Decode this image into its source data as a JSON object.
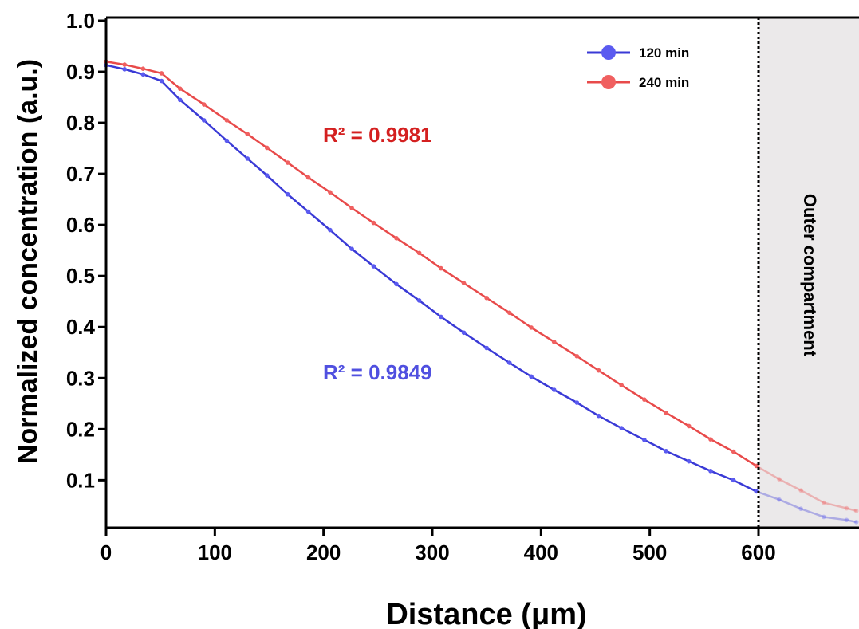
{
  "chart_data": {
    "type": "line",
    "xlabel": "Distance (μm)",
    "ylabel": "Normalized concentration (a.u.)",
    "xlim": [
      0,
      690
    ],
    "ylim": [
      0.01,
      1.0
    ],
    "xticks": [
      {
        "value": 0,
        "label": "0"
      },
      {
        "value": 100,
        "label": "100"
      },
      {
        "value": 200,
        "label": "200"
      },
      {
        "value": 300,
        "label": "300"
      },
      {
        "value": 400,
        "label": "400"
      },
      {
        "value": 500,
        "label": "500"
      },
      {
        "value": 600,
        "label": "600"
      }
    ],
    "yticks": [
      {
        "value": 0.1,
        "label": "0.1"
      },
      {
        "value": 0.2,
        "label": "0.2"
      },
      {
        "value": 0.3,
        "label": "0.3"
      },
      {
        "value": 0.4,
        "label": "0.4"
      },
      {
        "value": 0.5,
        "label": "0.5"
      },
      {
        "value": 0.6,
        "label": "0.6"
      },
      {
        "value": 0.7,
        "label": "0.7"
      },
      {
        "value": 0.8,
        "label": "0.8"
      },
      {
        "value": 0.9,
        "label": "0.9"
      },
      {
        "value": 1.0,
        "label": "1.0"
      }
    ],
    "region": {
      "x_start": 600,
      "x_end": 690,
      "label": "Outer compartment",
      "color": "#ebe9ea"
    },
    "boundary_x": 600,
    "legend_position": "top-right",
    "series": [
      {
        "name": "120 min",
        "color": "#3a3ad6",
        "marker_color": "#5a5af0",
        "x": [
          0,
          17,
          34,
          51,
          68,
          90,
          111,
          130,
          148,
          167,
          186,
          206,
          226,
          246,
          267,
          288,
          308,
          329,
          350,
          371,
          391,
          412,
          433,
          453,
          474,
          495,
          515,
          536,
          556,
          577,
          598,
          619,
          639,
          660,
          681,
          690
        ],
        "y": [
          0.913,
          0.905,
          0.895,
          0.882,
          0.845,
          0.805,
          0.765,
          0.73,
          0.697,
          0.66,
          0.626,
          0.59,
          0.553,
          0.519,
          0.484,
          0.452,
          0.42,
          0.389,
          0.359,
          0.33,
          0.303,
          0.277,
          0.252,
          0.226,
          0.202,
          0.179,
          0.157,
          0.137,
          0.118,
          0.1,
          0.078,
          0.062,
          0.044,
          0.028,
          0.022,
          0.018
        ]
      },
      {
        "name": "240 min",
        "color": "#e84a4a",
        "marker_color": "#f06060",
        "x": [
          0,
          17,
          34,
          51,
          68,
          90,
          111,
          130,
          148,
          167,
          186,
          206,
          226,
          246,
          267,
          288,
          308,
          329,
          350,
          371,
          391,
          412,
          433,
          453,
          474,
          495,
          515,
          536,
          556,
          577,
          598,
          619,
          639,
          660,
          681,
          690
        ],
        "y": [
          0.92,
          0.914,
          0.906,
          0.897,
          0.867,
          0.836,
          0.805,
          0.778,
          0.751,
          0.722,
          0.693,
          0.664,
          0.633,
          0.604,
          0.574,
          0.545,
          0.515,
          0.486,
          0.457,
          0.428,
          0.399,
          0.371,
          0.343,
          0.315,
          0.286,
          0.258,
          0.232,
          0.206,
          0.18,
          0.156,
          0.128,
          0.102,
          0.08,
          0.056,
          0.045,
          0.04
        ]
      }
    ],
    "annotations": [
      {
        "text": "R² = 0.9981",
        "color": "#d42020"
      },
      {
        "text": "R² = 0.9849",
        "color": "#5050e0"
      }
    ]
  }
}
